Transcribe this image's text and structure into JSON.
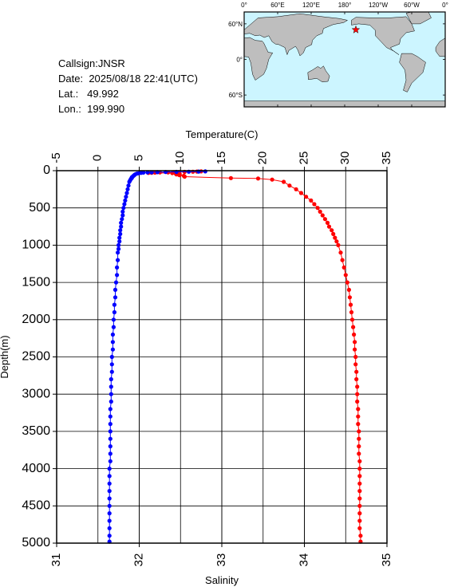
{
  "info": {
    "callsign_label": "Callsign:",
    "callsign": "JNSR",
    "date_label": "Date:",
    "date": "2025/08/18 22:41(UTC)",
    "lat_label": "Lat.:",
    "lat": "49.992",
    "lon_label": "Lon.:",
    "lon": "199.990"
  },
  "map": {
    "top_labels": [
      "0°",
      "60°E",
      "120°E",
      "180°",
      "120°W",
      "60°W",
      "0°"
    ],
    "left_labels": [
      "60°N",
      "0°",
      "60°S"
    ],
    "ocean_color": "#ccf5ff",
    "land_color": "#bebebe",
    "marker_color": "#ff0000",
    "marker": "star-icon"
  },
  "chart_data": {
    "type": "scatter",
    "title": "",
    "ylabel": "Depth(m)",
    "ylim": [
      0,
      5000
    ],
    "yticks": [
      "0",
      "500",
      "1000",
      "1500",
      "2000",
      "2500",
      "3000",
      "3500",
      "4000",
      "4500",
      "5000"
    ],
    "top_axis": {
      "label": "Temperature(C)",
      "lim": [
        -5,
        35
      ],
      "ticks": [
        "-5",
        "0",
        "5",
        "10",
        "15",
        "20",
        "25",
        "30",
        "35"
      ]
    },
    "bottom_axis": {
      "label": "Salinity",
      "lim": [
        31,
        35
      ],
      "ticks": [
        "31",
        "32",
        "33",
        "34",
        "35"
      ]
    },
    "grid": true,
    "series": [
      {
        "color": "#ff0000",
        "axis": "temperature",
        "points": [
          [
            12.5,
            10
          ],
          [
            12.0,
            12
          ],
          [
            11.5,
            14
          ],
          [
            10.5,
            16
          ],
          [
            9.8,
            18
          ],
          [
            9.2,
            20
          ],
          [
            8.5,
            22
          ],
          [
            7.5,
            24
          ],
          [
            6.9,
            26
          ],
          [
            6.5,
            28
          ],
          [
            6.1,
            30
          ],
          [
            9.0,
            32
          ],
          [
            9.4,
            35
          ],
          [
            9.6,
            38
          ],
          [
            9.5,
            40
          ],
          [
            9.9,
            45
          ],
          [
            9.5,
            50
          ],
          [
            9.8,
            55
          ],
          [
            9.9,
            60
          ],
          [
            10.4,
            70
          ],
          [
            10.5,
            80
          ],
          [
            16.1,
            100
          ],
          [
            19.4,
            105
          ],
          [
            21.1,
            120
          ],
          [
            22.5,
            150
          ],
          [
            23.2,
            200
          ],
          [
            24.0,
            250
          ],
          [
            24.6,
            300
          ],
          [
            25.2,
            350
          ],
          [
            25.8,
            400
          ],
          [
            26.2,
            450
          ],
          [
            26.6,
            500
          ],
          [
            26.9,
            550
          ],
          [
            27.2,
            600
          ],
          [
            27.5,
            650
          ],
          [
            27.8,
            700
          ],
          [
            28.0,
            750
          ],
          [
            28.3,
            800
          ],
          [
            28.5,
            850
          ],
          [
            28.7,
            900
          ],
          [
            28.9,
            950
          ],
          [
            29.1,
            1000
          ],
          [
            29.4,
            1100
          ],
          [
            29.6,
            1200
          ],
          [
            29.8,
            1300
          ],
          [
            30.0,
            1400
          ],
          [
            30.2,
            1500
          ],
          [
            30.4,
            1600
          ],
          [
            30.5,
            1700
          ],
          [
            30.6,
            1800
          ],
          [
            30.7,
            1900
          ],
          [
            30.8,
            2000
          ],
          [
            30.9,
            2100
          ],
          [
            31.0,
            2200
          ],
          [
            31.1,
            2300
          ],
          [
            31.1,
            2400
          ],
          [
            31.2,
            2500
          ],
          [
            31.2,
            2600
          ],
          [
            31.3,
            2700
          ],
          [
            31.3,
            2800
          ],
          [
            31.4,
            2900
          ],
          [
            31.4,
            3000
          ],
          [
            31.4,
            3100
          ],
          [
            31.5,
            3200
          ],
          [
            31.5,
            3300
          ],
          [
            31.5,
            3400
          ],
          [
            31.6,
            3500
          ],
          [
            31.6,
            3600
          ],
          [
            31.6,
            3700
          ],
          [
            31.6,
            3800
          ],
          [
            31.7,
            3900
          ],
          [
            31.7,
            4000
          ],
          [
            31.7,
            4100
          ],
          [
            31.7,
            4200
          ],
          [
            31.7,
            4300
          ],
          [
            31.7,
            4400
          ],
          [
            31.7,
            4500
          ],
          [
            31.7,
            4600
          ],
          [
            31.7,
            4700
          ],
          [
            31.7,
            4800
          ],
          [
            31.8,
            4900
          ],
          [
            31.8,
            4980
          ]
        ]
      },
      {
        "color": "#0000ff",
        "axis": "salinity",
        "points": [
          [
            32.8,
            10
          ],
          [
            32.72,
            12
          ],
          [
            32.6,
            14
          ],
          [
            32.45,
            16
          ],
          [
            32.32,
            18
          ],
          [
            32.22,
            20
          ],
          [
            32.15,
            22
          ],
          [
            32.1,
            24
          ],
          [
            32.05,
            26
          ],
          [
            32.02,
            30
          ],
          [
            31.99,
            35
          ],
          [
            31.97,
            40
          ],
          [
            31.95,
            50
          ],
          [
            31.94,
            60
          ],
          [
            31.93,
            70
          ],
          [
            31.92,
            80
          ],
          [
            31.91,
            90
          ],
          [
            31.91,
            100
          ],
          [
            31.9,
            110
          ],
          [
            31.89,
            130
          ],
          [
            31.88,
            150
          ],
          [
            31.87,
            200
          ],
          [
            31.86,
            250
          ],
          [
            31.85,
            300
          ],
          [
            31.84,
            350
          ],
          [
            31.83,
            400
          ],
          [
            31.82,
            450
          ],
          [
            31.81,
            500
          ],
          [
            31.8,
            550
          ],
          [
            31.8,
            600
          ],
          [
            31.79,
            650
          ],
          [
            31.78,
            700
          ],
          [
            31.78,
            750
          ],
          [
            31.77,
            800
          ],
          [
            31.77,
            850
          ],
          [
            31.76,
            900
          ],
          [
            31.76,
            950
          ],
          [
            31.75,
            1000
          ],
          [
            31.75,
            1050
          ],
          [
            31.74,
            1100
          ],
          [
            31.74,
            1200
          ],
          [
            31.73,
            1300
          ],
          [
            31.73,
            1400
          ],
          [
            31.72,
            1500
          ],
          [
            31.71,
            1600
          ],
          [
            31.71,
            1700
          ],
          [
            31.7,
            1800
          ],
          [
            31.7,
            1900
          ],
          [
            31.69,
            2000
          ],
          [
            31.69,
            2100
          ],
          [
            31.68,
            2200
          ],
          [
            31.68,
            2300
          ],
          [
            31.68,
            2400
          ],
          [
            31.67,
            2500
          ],
          [
            31.67,
            2600
          ],
          [
            31.67,
            2700
          ],
          [
            31.66,
            2800
          ],
          [
            31.66,
            2900
          ],
          [
            31.66,
            3000
          ],
          [
            31.66,
            3100
          ],
          [
            31.65,
            3200
          ],
          [
            31.65,
            3300
          ],
          [
            31.65,
            3400
          ],
          [
            31.65,
            3500
          ],
          [
            31.65,
            3600
          ],
          [
            31.65,
            3700
          ],
          [
            31.65,
            3800
          ],
          [
            31.65,
            3900
          ],
          [
            31.64,
            4000
          ],
          [
            31.64,
            4100
          ],
          [
            31.64,
            4200
          ],
          [
            31.64,
            4300
          ],
          [
            31.64,
            4400
          ],
          [
            31.64,
            4500
          ],
          [
            31.64,
            4600
          ],
          [
            31.64,
            4700
          ],
          [
            31.64,
            4800
          ],
          [
            31.64,
            4900
          ],
          [
            31.64,
            4980
          ]
        ]
      }
    ]
  }
}
